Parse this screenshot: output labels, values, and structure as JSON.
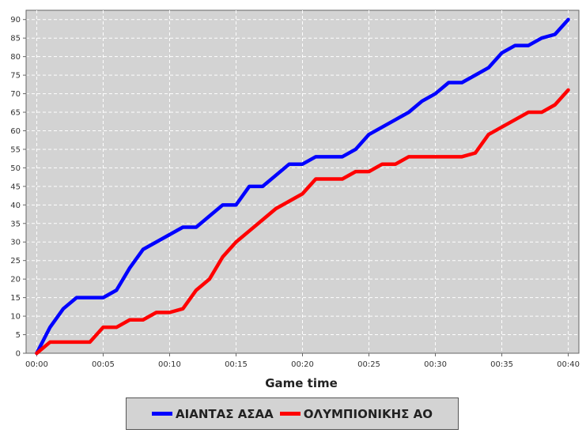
{
  "chart_data": {
    "type": "line",
    "xlabel": "Game time",
    "ylabel": "",
    "x_ticks": [
      "00:00",
      "00:05",
      "00:10",
      "00:15",
      "00:20",
      "00:25",
      "00:30",
      "00:35",
      "00:40"
    ],
    "x_tick_values": [
      0,
      5,
      10,
      15,
      20,
      25,
      30,
      35,
      40
    ],
    "y_ticks": [
      0,
      5,
      10,
      15,
      20,
      25,
      30,
      35,
      40,
      45,
      50,
      55,
      60,
      65,
      70,
      75,
      80,
      85,
      90
    ],
    "xlim": [
      -0.8,
      40.8
    ],
    "ylim": [
      0,
      92.5
    ],
    "grid": true,
    "legend_position": "bottom",
    "series": [
      {
        "name": "ΑΙΑΝΤΑΣ ΑΣΑΑ",
        "color": "#0000ff",
        "points": [
          [
            0,
            0
          ],
          [
            1,
            7
          ],
          [
            2,
            12
          ],
          [
            3,
            15
          ],
          [
            4,
            15
          ],
          [
            5,
            15
          ],
          [
            6,
            17
          ],
          [
            7,
            23
          ],
          [
            8,
            28
          ],
          [
            9,
            30
          ],
          [
            10,
            32
          ],
          [
            11,
            34
          ],
          [
            12,
            34
          ],
          [
            13,
            37
          ],
          [
            14,
            40
          ],
          [
            15,
            40
          ],
          [
            16,
            45
          ],
          [
            17,
            45
          ],
          [
            18,
            48
          ],
          [
            19,
            51
          ],
          [
            20,
            51
          ],
          [
            21,
            53
          ],
          [
            22,
            53
          ],
          [
            23,
            53
          ],
          [
            24,
            55
          ],
          [
            25,
            59
          ],
          [
            26,
            61
          ],
          [
            27,
            63
          ],
          [
            28,
            65
          ],
          [
            29,
            68
          ],
          [
            30,
            70
          ],
          [
            31,
            73
          ],
          [
            32,
            73
          ],
          [
            33,
            75
          ],
          [
            34,
            77
          ],
          [
            35,
            81
          ],
          [
            36,
            83
          ],
          [
            37,
            83
          ],
          [
            38,
            85
          ],
          [
            39,
            86
          ],
          [
            40,
            90
          ]
        ]
      },
      {
        "name": "ΟΛΥΜΠΙΟΝΙΚΗΣ ΑΟ",
        "color": "#ff0000",
        "points": [
          [
            0,
            0
          ],
          [
            1,
            3
          ],
          [
            2,
            3
          ],
          [
            3,
            3
          ],
          [
            4,
            3
          ],
          [
            5,
            7
          ],
          [
            6,
            7
          ],
          [
            7,
            9
          ],
          [
            8,
            9
          ],
          [
            9,
            11
          ],
          [
            10,
            11
          ],
          [
            11,
            12
          ],
          [
            12,
            17
          ],
          [
            13,
            20
          ],
          [
            14,
            26
          ],
          [
            15,
            30
          ],
          [
            16,
            33
          ],
          [
            17,
            36
          ],
          [
            18,
            39
          ],
          [
            19,
            41
          ],
          [
            20,
            43
          ],
          [
            21,
            47
          ],
          [
            22,
            47
          ],
          [
            23,
            47
          ],
          [
            24,
            49
          ],
          [
            25,
            49
          ],
          [
            26,
            51
          ],
          [
            27,
            51
          ],
          [
            28,
            53
          ],
          [
            29,
            53
          ],
          [
            30,
            53
          ],
          [
            31,
            53
          ],
          [
            32,
            53
          ],
          [
            33,
            54
          ],
          [
            34,
            59
          ],
          [
            35,
            61
          ],
          [
            36,
            63
          ],
          [
            37,
            65
          ],
          [
            38,
            65
          ],
          [
            39,
            67
          ],
          [
            40,
            71
          ]
        ]
      }
    ]
  }
}
